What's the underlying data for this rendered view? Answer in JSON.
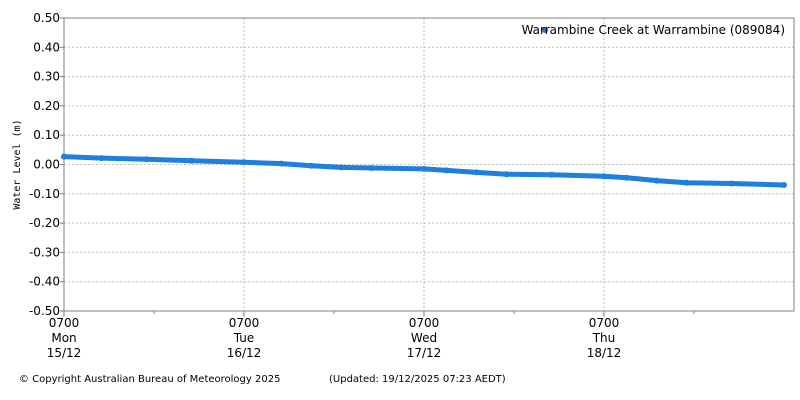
{
  "chart_data": {
    "type": "scatter",
    "ylabel": "Water Level (m)",
    "ylim": [
      -0.5,
      0.5
    ],
    "y_ticks": [
      "0.50",
      "0.40",
      "0.30",
      "0.20",
      "0.10",
      "0.00",
      "-0.10",
      "-0.20",
      "-0.30",
      "-0.40",
      "-0.50"
    ],
    "x_ticks": [
      {
        "time": "0700",
        "day": "Mon",
        "date": "15/12"
      },
      {
        "time": "0700",
        "day": "Tue",
        "date": "16/12"
      },
      {
        "time": "0700",
        "day": "Wed",
        "date": "17/12"
      },
      {
        "time": "0700",
        "day": "Thu",
        "date": "18/12"
      }
    ],
    "grid": true,
    "legend_position": "top-right",
    "series": [
      {
        "name": "Warrambine Creek at Warrambine (089084)",
        "color": "#1f7fe0",
        "points": [
          {
            "t": "15/12/2025 07:00",
            "y": 0.027
          },
          {
            "t": "15/12/2025 12:00",
            "y": 0.022
          },
          {
            "t": "15/12/2025 18:00",
            "y": 0.018
          },
          {
            "t": "16/12/2025 00:00",
            "y": 0.013
          },
          {
            "t": "16/12/2025 07:00",
            "y": 0.008
          },
          {
            "t": "16/12/2025 12:00",
            "y": 0.003
          },
          {
            "t": "16/12/2025 16:00",
            "y": -0.004
          },
          {
            "t": "16/12/2025 20:00",
            "y": -0.01
          },
          {
            "t": "17/12/2025 00:00",
            "y": -0.012
          },
          {
            "t": "17/12/2025 07:00",
            "y": -0.015
          },
          {
            "t": "17/12/2025 10:00",
            "y": -0.02
          },
          {
            "t": "17/12/2025 14:00",
            "y": -0.027
          },
          {
            "t": "17/12/2025 18:00",
            "y": -0.033
          },
          {
            "t": "18/12/2025 00:00",
            "y": -0.035
          },
          {
            "t": "18/12/2025 07:00",
            "y": -0.04
          },
          {
            "t": "18/12/2025 10:00",
            "y": -0.045
          },
          {
            "t": "18/12/2025 14:00",
            "y": -0.055
          },
          {
            "t": "18/12/2025 18:00",
            "y": -0.062
          },
          {
            "t": "19/12/2025 00:00",
            "y": -0.065
          },
          {
            "t": "19/12/2025 07:00",
            "y": -0.07
          }
        ]
      }
    ]
  },
  "footer": {
    "copyright": "© Copyright Australian Bureau of Meteorology 2025",
    "updated": "(Updated: 19/12/2025 07:23 AEDT)"
  }
}
